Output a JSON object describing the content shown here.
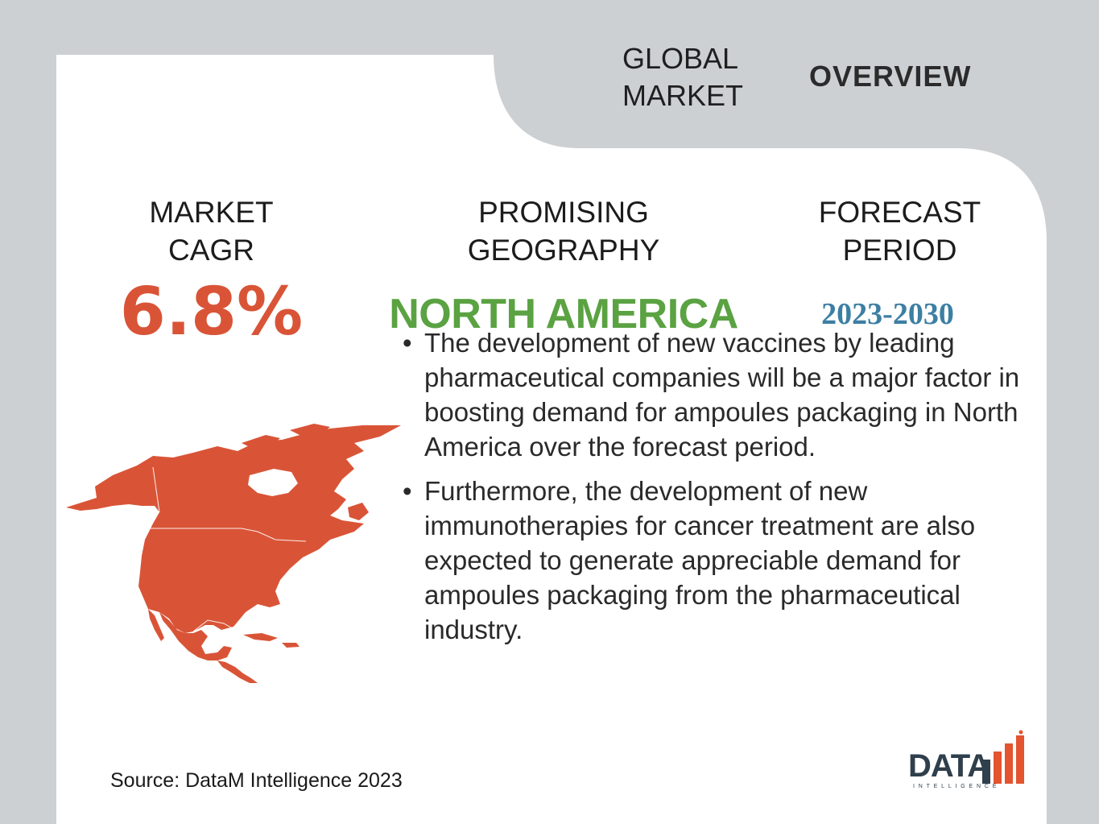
{
  "header": {
    "global_market_line1": "GLOBAL",
    "global_market_line2": "MARKET",
    "overview": "OVERVIEW"
  },
  "stats": {
    "cagr": {
      "label_line1": "MARKET",
      "label_line2": "CAGR",
      "value": "6.8%"
    },
    "geography": {
      "label_line1": "PROMISING",
      "label_line2": "GEOGRAPHY",
      "value": "NORTH AMERICA"
    },
    "period": {
      "label_line1": "FORECAST",
      "label_line2": "PERIOD",
      "value": "2023-2030"
    }
  },
  "bullets": [
    "The development of new vaccines by leading pharmaceutical companies will be a major factor in boosting demand for ampoules packaging in North America over the forecast period.",
    "Furthermore, the development of new immunotherapies for cancer treatment are also expected to generate appreciable demand for ampoules packaging from the pharmaceutical industry."
  ],
  "source": "Source: DataM Intelligence 2023",
  "logo": {
    "text": "DATA",
    "subtext": "INTELLIGENCE"
  },
  "colors": {
    "background": "#ccd0d3",
    "cagr": "#d95437",
    "geography": "#5aa242",
    "period": "#3d7fa3",
    "map": "#d95437"
  },
  "icons": {
    "map": "north-america-map-icon",
    "logo": "datam-logo"
  }
}
